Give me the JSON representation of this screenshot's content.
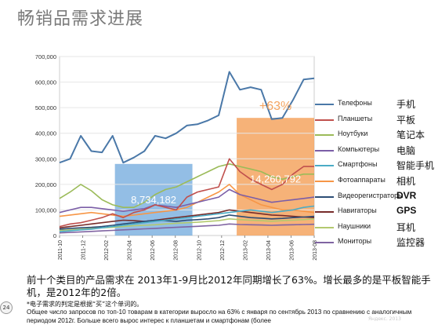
{
  "page": {
    "title": "畅销品需求进展",
    "summary": "前十个类目的产品需求在 2013年1-9月比2012年同期增长了63%。增长最多的是平板智能手机，是2012年的2倍。",
    "footnote": "*电子需求的判定是根据“买”这个单词的。",
    "russian_text": "Общее число запросов по топ-10 товарам в категории выросло на 63% с января по сентябрь 2013 по сравнению с аналогичным периодом 2012г. Больше всего вырос интерес к планшетам и смартфонам (более",
    "page_number": "24",
    "watermark": "Яндекс. 2013"
  },
  "chart_data": {
    "type": "line",
    "y_ticks": [
      "0",
      "100,000",
      "200,000",
      "300,000",
      "400,000",
      "500,000",
      "600,000",
      "700,000"
    ],
    "ylim": [
      0,
      700000
    ],
    "x_tick_labels": [
      "2011-10",
      "2011-12",
      "2012-02",
      "2012-04",
      "2012-06",
      "2012-08",
      "2012-10",
      "2012-12",
      "2013-02",
      "2013-04",
      "2013-06",
      "2013-08"
    ],
    "x_range": [
      0,
      23
    ],
    "series": [
      {
        "name": "Телефоны",
        "name_cn": "手机",
        "color": "#4a78a8",
        "values": [
          285000,
          300000,
          390000,
          330000,
          325000,
          390000,
          285000,
          305000,
          330000,
          390000,
          380000,
          400000,
          430000,
          435000,
          450000,
          470000,
          640000,
          570000,
          580000,
          570000,
          455000,
          460000,
          530000,
          610000,
          615000
        ]
      },
      {
        "name": "Планшеты",
        "name_cn": "平板",
        "color": "#c0504d",
        "values": [
          35000,
          45000,
          50000,
          60000,
          70000,
          85000,
          70000,
          90000,
          100000,
          120000,
          110000,
          100000,
          150000,
          170000,
          180000,
          190000,
          300000,
          250000,
          220000,
          200000,
          180000,
          200000,
          240000,
          270000,
          270000
        ]
      },
      {
        "name": "Ноутбуки",
        "name_cn": "笔记本",
        "color": "#9bbb59",
        "values": [
          145000,
          170000,
          200000,
          175000,
          140000,
          120000,
          110000,
          110000,
          130000,
          160000,
          180000,
          190000,
          210000,
          230000,
          250000,
          270000,
          280000,
          270000,
          260000,
          250000,
          230000,
          220000,
          230000,
          240000,
          240000
        ]
      },
      {
        "name": "Компьютеры",
        "name_cn": "电脑",
        "color": "#7b5ea7",
        "values": [
          90000,
          100000,
          110000,
          110000,
          105000,
          100000,
          95000,
          100000,
          105000,
          120000,
          115000,
          110000,
          120000,
          130000,
          140000,
          150000,
          180000,
          160000,
          150000,
          140000,
          130000,
          135000,
          140000,
          145000,
          150000
        ]
      },
      {
        "name": "Смартфоны",
        "name_cn": "智能手机",
        "color": "#4bacc6",
        "values": [
          15000,
          18000,
          22000,
          25000,
          30000,
          35000,
          40000,
          45000,
          50000,
          55000,
          60000,
          65000,
          70000,
          75000,
          80000,
          85000,
          90000,
          95000,
          100000,
          95000,
          90000,
          95000,
          100000,
          110000,
          115000
        ]
      },
      {
        "name": "Фотоаппараты",
        "name_cn": "相机",
        "color": "#f79646",
        "values": [
          75000,
          80000,
          85000,
          90000,
          85000,
          80000,
          75000,
          80000,
          85000,
          90000,
          95000,
          100000,
          110000,
          130000,
          150000,
          170000,
          200000,
          160000,
          140000,
          120000,
          110000,
          100000,
          100000,
          95000,
          90000
        ]
      },
      {
        "name": "Видеорегистраторы",
        "name_cn": "DVR",
        "color": "#2c4d75",
        "values": [
          25000,
          28000,
          30000,
          32000,
          35000,
          40000,
          45000,
          50000,
          55000,
          60000,
          58000,
          55000,
          60000,
          62000,
          65000,
          70000,
          80000,
          75000,
          70000,
          68000,
          65000,
          67000,
          70000,
          72000,
          75000
        ]
      },
      {
        "name": "Навигаторы",
        "name_cn": "GPS",
        "color": "#772c2a",
        "values": [
          30000,
          35000,
          40000,
          45000,
          50000,
          55000,
          60000,
          58000,
          55000,
          60000,
          65000,
          70000,
          75000,
          80000,
          85000,
          90000,
          100000,
          95000,
          90000,
          85000,
          80000,
          78000,
          75000,
          72000,
          70000
        ]
      },
      {
        "name": "Наушники",
        "name_cn": "耳机",
        "color": "#b3c96f",
        "values": [
          20000,
          22000,
          25000,
          28000,
          30000,
          32000,
          35000,
          38000,
          40000,
          42000,
          45000,
          48000,
          50000,
          52000,
          55000,
          58000,
          65000,
          62000,
          60000,
          58000,
          56000,
          58000,
          60000,
          62000,
          65000
        ]
      },
      {
        "name": "Мониторы",
        "name_cn": "监控器",
        "color": "#8064a2",
        "values": [
          10000,
          12000,
          14000,
          16000,
          18000,
          20000,
          22000,
          24000,
          26000,
          28000,
          30000,
          32000,
          34000,
          36000,
          38000,
          40000,
          45000,
          43000,
          42000,
          41000,
          40000,
          41000,
          42000,
          43000,
          44000
        ]
      }
    ],
    "highlights": [
      {
        "label": "8,734,182",
        "color": "#6fa8dc",
        "opacity": 0.75,
        "x_from": 5,
        "x_to": 12,
        "y_top": 280000
      },
      {
        "label": "14,260,792",
        "color": "#f4a460",
        "opacity": 0.85,
        "x_from": 16,
        "x_to": 23,
        "y_top": 460000
      }
    ],
    "annotation": {
      "label": "+63%",
      "color": "#f4a460"
    }
  }
}
